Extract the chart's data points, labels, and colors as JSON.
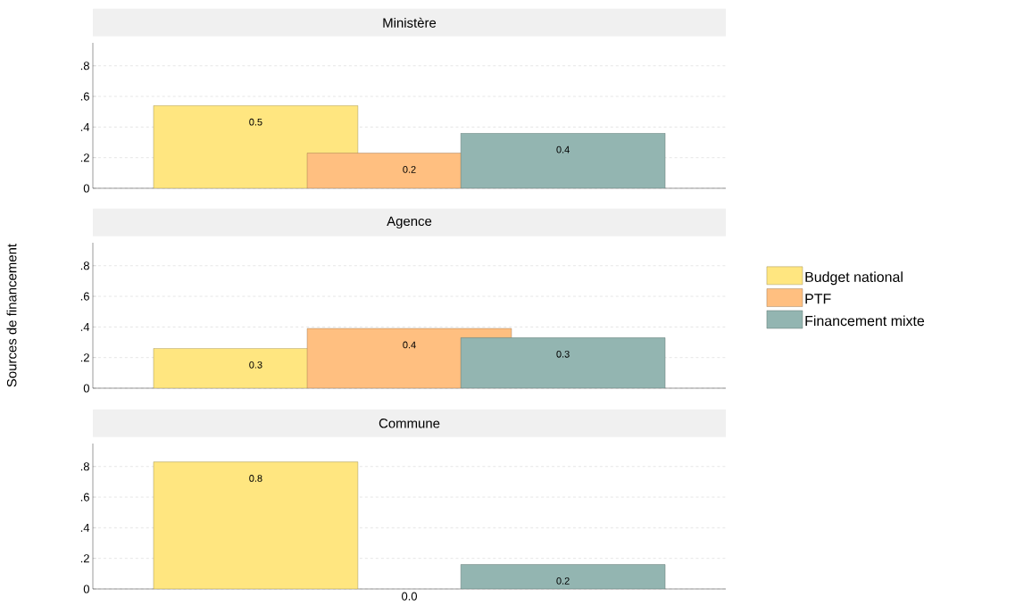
{
  "chart_data": [
    {
      "type": "bar",
      "title": "Ministère",
      "categories": [
        null,
        null,
        null
      ],
      "tick_labels": "y",
      "grid": "y",
      "ylim": [
        0,
        0.95
      ],
      "yticks": [
        0,
        {
          "value": 0.2,
          "label": ".2"
        },
        {
          "value": 0.4,
          "label": ".4"
        },
        {
          "value": 0.6,
          "label": ".6"
        },
        {
          "value": 0.8,
          "label": ".8"
        }
      ],
      "series": [
        {
          "color": "#ffe680",
          "values": [
            0.54,
            null,
            null
          ],
          "value_labels": [
            "0.5",
            null,
            null
          ]
        },
        {
          "color": "#ffbf80",
          "values": [
            null,
            0.23,
            null
          ],
          "value_labels": [
            null,
            "0.2",
            null
          ]
        },
        {
          "color": "#93b5b1",
          "values": [
            null,
            null,
            0.36
          ],
          "value_labels": [
            null,
            null,
            "0.4"
          ]
        }
      ]
    },
    {
      "type": "bar",
      "title": "Agence",
      "ylabel": "Sources de financement",
      "legend": "right",
      "categories": [
        null,
        null,
        null
      ],
      "tick_labels": "y",
      "grid": "y",
      "ylim": [
        0,
        0.95
      ],
      "yticks": [
        0,
        {
          "value": 0.2,
          "label": ".2"
        },
        {
          "value": 0.4,
          "label": ".4"
        },
        {
          "value": 0.6,
          "label": ".6"
        },
        {
          "value": 0.8,
          "label": ".8"
        }
      ],
      "series": [
        {
          "name": "Budget national",
          "color": "#ffe680",
          "values": [
            0.26,
            null,
            null
          ],
          "value_labels": [
            "0.3",
            null,
            null
          ]
        },
        {
          "name": "PTF",
          "color": "#ffbf80",
          "values": [
            null,
            0.39,
            null
          ],
          "value_labels": [
            null,
            "0.4",
            null
          ]
        },
        {
          "name": "Financement mixte",
          "color": "#93b5b1",
          "values": [
            null,
            null,
            0.33
          ],
          "value_labels": [
            null,
            null,
            "0.3"
          ]
        }
      ]
    },
    {
      "type": "bar",
      "title": "Commune",
      "categories": [
        null,
        "0.0",
        null
      ],
      "grid": "y",
      "ylim": [
        0,
        0.95
      ],
      "yticks": [
        0,
        {
          "value": 0.2,
          "label": ".2"
        },
        {
          "value": 0.4,
          "label": ".4"
        },
        {
          "value": 0.6,
          "label": ".6"
        },
        {
          "value": 0.8,
          "label": ".8"
        }
      ],
      "series": [
        {
          "color": "#ffe680",
          "values": [
            0.83,
            null,
            null
          ],
          "value_labels": [
            "0.8",
            null,
            null
          ]
        },
        {
          "color": "#ffbf80",
          "values": [
            null,
            null,
            null
          ],
          "value_labels": [
            null,
            null,
            null
          ]
        },
        {
          "color": "#93b5b1",
          "values": [
            null,
            null,
            0.16
          ],
          "value_labels": [
            null,
            null,
            "0.2"
          ]
        }
      ]
    }
  ]
}
